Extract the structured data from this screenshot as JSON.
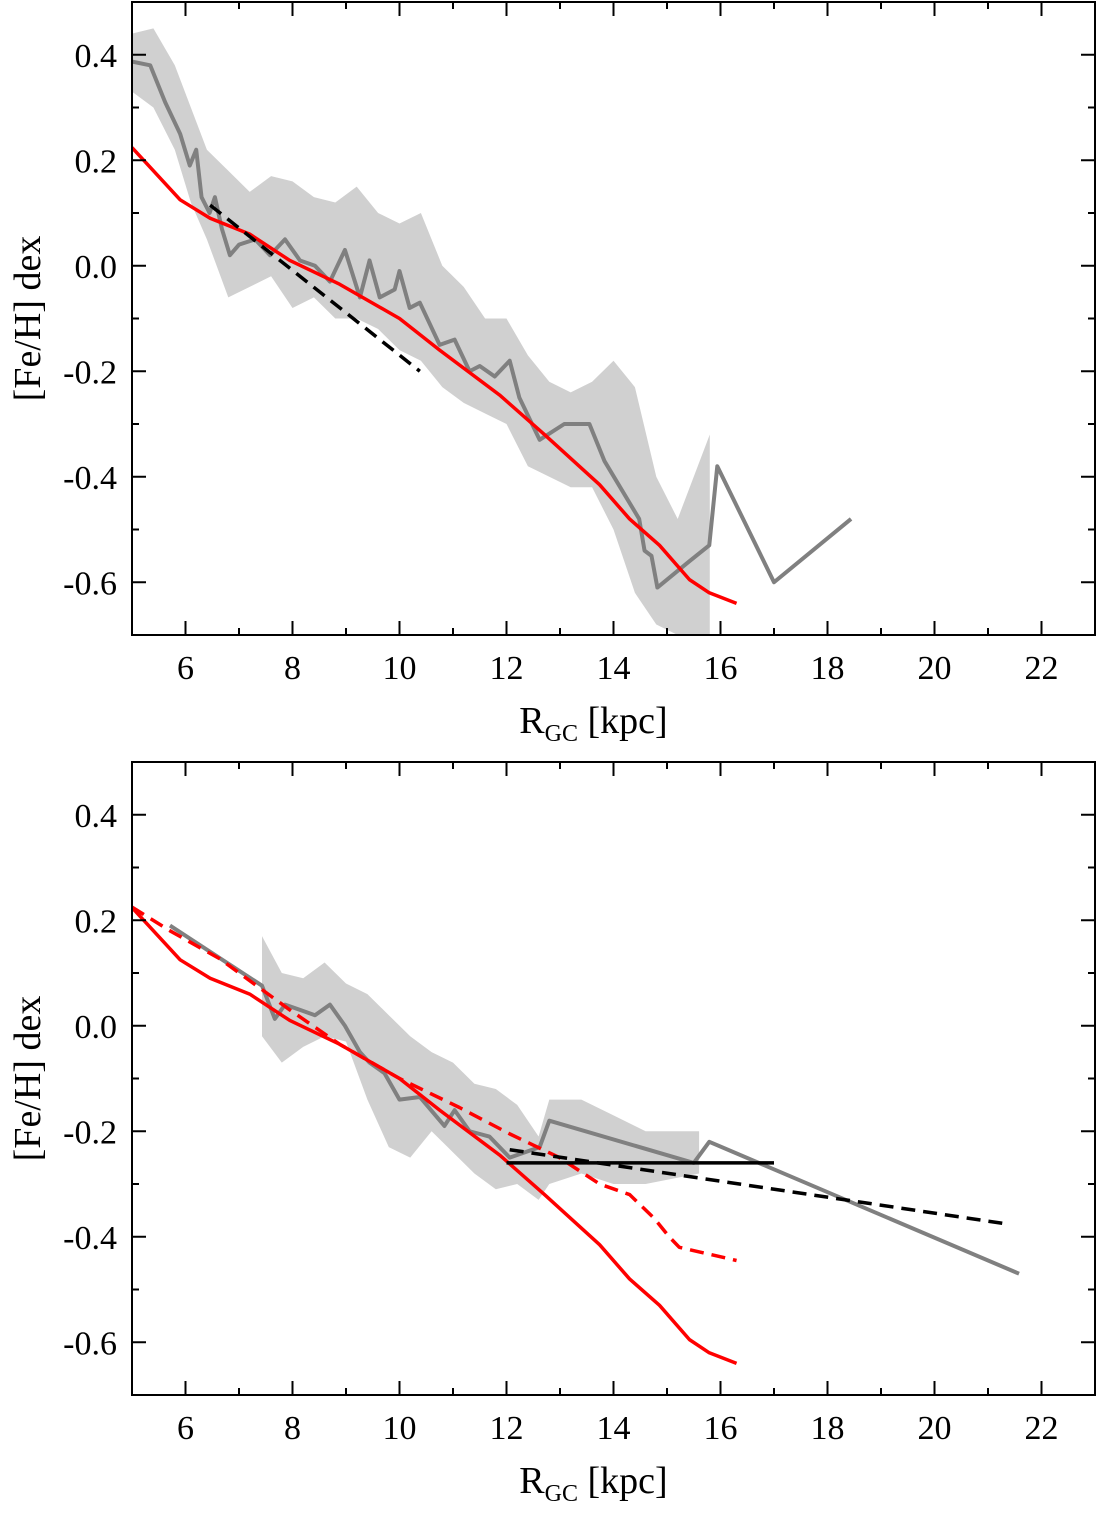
{
  "chart_data": [
    {
      "type": "line",
      "ylabel": "[Fe/H] dex",
      "xlabel": [
        "R",
        "GC",
        " [kpc]"
      ],
      "xlim": [
        5,
        23
      ],
      "ylim": [
        -0.7,
        0.5
      ],
      "xticks": [
        6,
        8,
        10,
        12,
        14,
        16,
        18,
        20,
        22
      ],
      "yticks": [
        -0.6,
        -0.4,
        -0.2,
        {
          "value": 0,
          "label": "0.0"
        },
        0.2,
        0.4
      ],
      "xminorticks": [
        7,
        9,
        11,
        13,
        15,
        17,
        19,
        21
      ],
      "yminorticks": [
        -0.5,
        -0.3,
        -0.1,
        0.1,
        0.3
      ],
      "band": {
        "color": "#d0d0d0",
        "x": [
          5.0,
          5.4,
          5.8,
          6.1,
          6.4,
          6.8,
          7.2,
          7.6,
          8.0,
          8.4,
          8.8,
          9.2,
          9.6,
          10.0,
          10.4,
          10.8,
          11.2,
          11.6,
          12.0,
          12.4,
          12.8,
          13.2,
          13.6,
          14.0,
          14.4,
          14.8,
          15.2,
          15.8
        ],
        "upper": [
          0.44,
          0.45,
          0.38,
          0.3,
          0.22,
          0.18,
          0.14,
          0.17,
          0.16,
          0.13,
          0.12,
          0.15,
          0.1,
          0.08,
          0.1,
          0.0,
          -0.04,
          -0.1,
          -0.1,
          -0.17,
          -0.22,
          -0.24,
          -0.22,
          -0.18,
          -0.23,
          -0.4,
          -0.48,
          -0.32
        ],
        "lower": [
          0.33,
          0.3,
          0.22,
          0.12,
          0.05,
          -0.06,
          -0.04,
          -0.02,
          -0.08,
          -0.06,
          -0.1,
          -0.1,
          -0.12,
          -0.16,
          -0.18,
          -0.23,
          -0.26,
          -0.28,
          -0.3,
          -0.38,
          -0.4,
          -0.42,
          -0.42,
          -0.5,
          -0.62,
          -0.68,
          -0.7,
          -0.7
        ]
      },
      "series": [
        {
          "color": "#808080",
          "dash": false,
          "x": [
            5.0,
            5.34,
            5.62,
            5.9,
            6.08,
            6.2,
            6.3,
            6.45,
            6.55,
            6.68,
            6.83,
            7.0,
            7.3,
            7.58,
            7.86,
            8.14,
            8.42,
            8.7,
            8.98,
            9.26,
            9.44,
            9.63,
            9.91,
            10.0,
            10.19,
            10.38,
            10.75,
            11.03,
            11.31,
            11.5,
            11.78,
            12.06,
            12.24,
            12.62,
            13.08,
            13.55,
            13.83,
            14.48,
            14.58,
            14.71,
            14.82,
            15.42,
            15.79,
            15.94,
            17.0,
            18.44
          ],
          "values": [
            0.387,
            0.38,
            0.31,
            0.25,
            0.19,
            0.22,
            0.13,
            0.1,
            0.13,
            0.07,
            0.02,
            0.04,
            0.05,
            0.02,
            0.05,
            0.01,
            0.0,
            -0.03,
            0.03,
            -0.06,
            0.01,
            -0.06,
            -0.045,
            -0.01,
            -0.08,
            -0.07,
            -0.15,
            -0.14,
            -0.2,
            -0.19,
            -0.21,
            -0.18,
            -0.25,
            -0.33,
            -0.3,
            -0.3,
            -0.37,
            -0.48,
            -0.54,
            -0.55,
            -0.61,
            -0.56,
            -0.53,
            -0.38,
            -0.6,
            -0.48
          ]
        },
        {
          "color": "#ff0000",
          "dash": false,
          "x": [
            5.0,
            5.9,
            6.46,
            7.2,
            7.95,
            8.88,
            10.0,
            10.75,
            11.87,
            12.71,
            13.74,
            14.3,
            14.86,
            15.42,
            15.79,
            16.3
          ],
          "values": [
            0.224,
            0.125,
            0.09,
            0.06,
            0.01,
            -0.035,
            -0.1,
            -0.16,
            -0.245,
            -0.32,
            -0.415,
            -0.48,
            -0.53,
            -0.595,
            -0.62,
            -0.64
          ]
        },
        {
          "color": "#000000",
          "dash": true,
          "x": [
            6.46,
            10.38
          ],
          "values": [
            0.115,
            -0.2
          ]
        }
      ]
    },
    {
      "type": "line",
      "ylabel": "[Fe/H] dex",
      "xlabel": [
        "R",
        "GC",
        " [kpc]"
      ],
      "xlim": [
        5,
        23
      ],
      "ylim": [
        -0.7,
        0.5
      ],
      "xticks": [
        6,
        8,
        10,
        12,
        14,
        16,
        18,
        20,
        22
      ],
      "yticks": [
        -0.6,
        -0.4,
        -0.2,
        {
          "value": 0,
          "label": "0.0"
        },
        0.2,
        0.4
      ],
      "xminorticks": [
        7,
        9,
        11,
        13,
        15,
        17,
        19,
        21
      ],
      "yminorticks": [
        -0.5,
        -0.3,
        -0.1,
        0.1,
        0.3
      ],
      "band": {
        "color": "#d0d0d0",
        "x": [
          7.43,
          7.8,
          8.2,
          8.6,
          9.0,
          9.4,
          9.8,
          10.2,
          10.6,
          11.0,
          11.4,
          11.8,
          12.2,
          12.6,
          12.8,
          13.4,
          14.0,
          14.6,
          15.6
        ],
        "upper": [
          0.17,
          0.1,
          0.09,
          0.12,
          0.08,
          0.06,
          0.02,
          -0.02,
          -0.05,
          -0.07,
          -0.11,
          -0.12,
          -0.15,
          -0.21,
          -0.14,
          -0.14,
          -0.17,
          -0.2,
          -0.2
        ],
        "lower": [
          -0.02,
          -0.07,
          -0.04,
          -0.02,
          -0.03,
          -0.14,
          -0.23,
          -0.25,
          -0.2,
          -0.24,
          -0.28,
          -0.31,
          -0.3,
          -0.33,
          -0.3,
          -0.28,
          -0.3,
          -0.3,
          -0.28
        ]
      },
      "series": [
        {
          "color": "#808080",
          "dash": false,
          "x": [
            5.71,
            7.43,
            7.67,
            7.86,
            8.14,
            8.42,
            8.7,
            8.98,
            9.26,
            9.44,
            9.72,
            10.0,
            10.38,
            10.84,
            11.03,
            11.31,
            11.68,
            12.06,
            12.62,
            12.8,
            15.5,
            15.79,
            21.58
          ],
          "values": [
            0.19,
            0.076,
            0.013,
            0.04,
            0.03,
            0.02,
            0.04,
            0.0,
            -0.05,
            -0.07,
            -0.09,
            -0.14,
            -0.135,
            -0.19,
            -0.16,
            -0.2,
            -0.21,
            -0.25,
            -0.23,
            -0.18,
            -0.26,
            -0.22,
            -0.47
          ]
        },
        {
          "color": "#ff0000",
          "dash": false,
          "x": [
            5.0,
            5.9,
            6.46,
            7.2,
            7.95,
            8.88,
            10.0,
            10.75,
            11.87,
            12.71,
            13.74,
            14.3,
            14.86,
            15.42,
            15.79,
            16.3
          ],
          "values": [
            0.224,
            0.125,
            0.09,
            0.06,
            0.01,
            -0.035,
            -0.1,
            -0.16,
            -0.245,
            -0.32,
            -0.415,
            -0.48,
            -0.53,
            -0.595,
            -0.62,
            -0.64
          ]
        },
        {
          "color": "#ff0000",
          "dash": true,
          "x": [
            5.0,
            5.71,
            6.64,
            7.95,
            8.88,
            10.0,
            11.12,
            12.06,
            12.99,
            13.74,
            14.3,
            14.76,
            15.04,
            15.23,
            16.3
          ],
          "values": [
            0.225,
            0.18,
            0.127,
            0.03,
            -0.035,
            -0.1,
            -0.155,
            -0.205,
            -0.25,
            -0.3,
            -0.32,
            -0.365,
            -0.4,
            -0.42,
            -0.445
          ]
        },
        {
          "color": "#000000",
          "dash": true,
          "x": [
            12.06,
            21.3
          ],
          "values": [
            -0.235,
            -0.375
          ]
        },
        {
          "color": "#000000",
          "dash": false,
          "x": [
            12.0,
            17.0
          ],
          "values": [
            -0.26,
            -0.26
          ]
        }
      ]
    }
  ]
}
